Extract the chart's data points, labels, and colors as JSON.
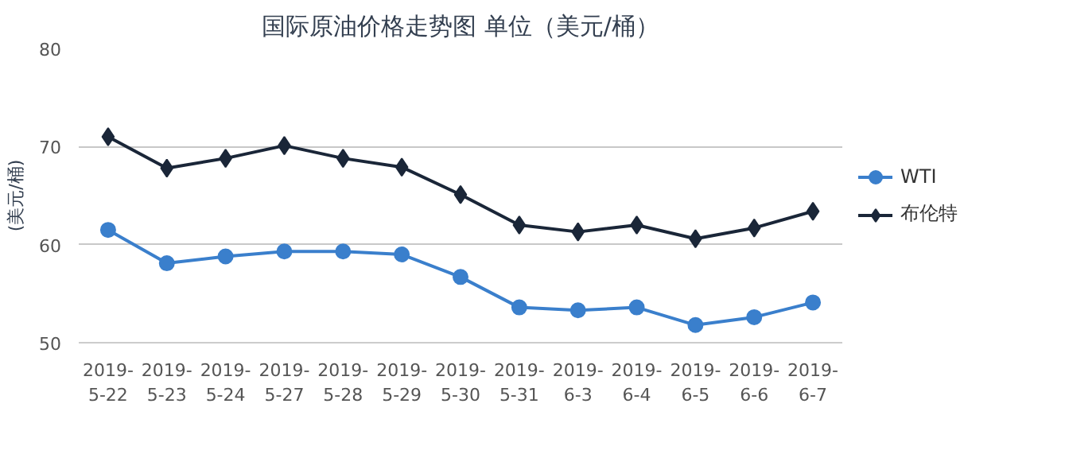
{
  "chart_data": {
    "type": "line",
    "title": "国际原油价格走势图 单位（美元/桶）",
    "ylabel": "(美元/桶)",
    "categories": [
      "2019-5-22",
      "2019-5-23",
      "2019-5-24",
      "2019-5-27",
      "2019-5-28",
      "2019-5-29",
      "2019-5-30",
      "2019-5-31",
      "2019-6-3",
      "2019-6-4",
      "2019-6-5",
      "2019-6-6",
      "2019-6-7"
    ],
    "series": [
      {
        "name": "WTI",
        "color": "#3a7fcc",
        "marker": "circle",
        "values": [
          61.5,
          58.1,
          58.8,
          59.3,
          59.3,
          59.0,
          56.7,
          53.6,
          53.3,
          53.6,
          51.8,
          52.6,
          54.1
        ]
      },
      {
        "name": "布伦特",
        "color": "#1a2638",
        "marker": "diamond",
        "values": [
          71.0,
          67.8,
          68.8,
          70.1,
          68.8,
          67.9,
          65.1,
          62.0,
          61.3,
          62.0,
          60.6,
          61.7,
          63.4
        ]
      }
    ],
    "ylim": [
      50,
      80
    ],
    "yticks": [
      50,
      60,
      70,
      80
    ],
    "grid": "y",
    "legend": "right",
    "line_style": "solid"
  }
}
